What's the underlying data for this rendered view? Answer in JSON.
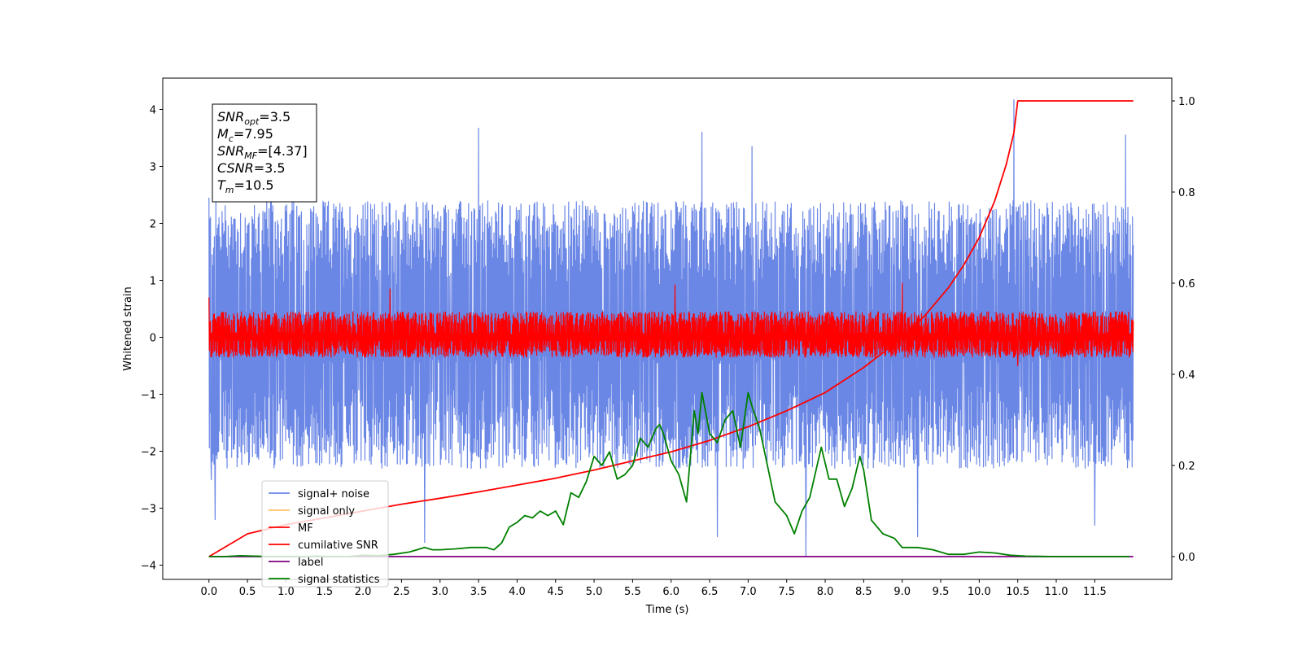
{
  "chart_data": {
    "type": "line",
    "xlabel": "Time (s)",
    "ylabel": "Whitened strain",
    "xlim": [
      -0.6,
      12.5
    ],
    "ylim": [
      -4.25,
      4.55
    ],
    "y2lim": [
      -0.05,
      1.05
    ],
    "x_ticks": [
      0.0,
      0.5,
      1.0,
      1.5,
      2.0,
      2.5,
      3.0,
      3.5,
      4.0,
      4.5,
      5.0,
      5.5,
      6.0,
      6.5,
      7.0,
      7.5,
      8.0,
      8.5,
      9.0,
      9.5,
      10.0,
      10.5,
      11.0,
      11.5
    ],
    "x_tick_labels": [
      "0.0",
      "0.5",
      "1.0",
      "1.5",
      "2.0",
      "2.5",
      "3.0",
      "3.5",
      "4.0",
      "4.5",
      "5.0",
      "5.5",
      "6.0",
      "6.5",
      "7.0",
      "7.5",
      "8.0",
      "8.5",
      "9.0",
      "9.5",
      "10.0",
      "10.5",
      "11.0",
      "11.5"
    ],
    "y_ticks": [
      -4,
      -3,
      -2,
      -1,
      0,
      1,
      2,
      3,
      4
    ],
    "y_tick_labels": [
      "−4",
      "−3",
      "−2",
      "−1",
      "0",
      "1",
      "2",
      "3",
      "4"
    ],
    "y2_ticks": [
      0.0,
      0.2,
      0.4,
      0.6,
      0.8,
      1.0
    ],
    "y2_tick_labels": [
      "0.0",
      "0.2",
      "0.4",
      "0.6",
      "0.8",
      "1.0"
    ],
    "legend_position": "lower-left",
    "grid": false,
    "annotation": {
      "snr_opt": {
        "symbol": "SNR",
        "sub": "opt",
        "value": "=3.5"
      },
      "mc": {
        "symbol": "M",
        "sub": "c",
        "value": "=7.95"
      },
      "snr_mf": {
        "symbol": "SNR",
        "sub": "MF",
        "value": "=[4.37]"
      },
      "csnr": {
        "symbol": "CSNR",
        "sub": "",
        "value": "=3.5"
      },
      "tm": {
        "symbol": "T",
        "sub": "m",
        "value": "=10.5"
      }
    },
    "series": [
      {
        "name": "signal+ noise",
        "color": "#6b87e5",
        "axis": "left",
        "kind": "noise",
        "x_range": [
          0.0,
          12.0
        ],
        "typical_range": [
          -2.3,
          2.4
        ],
        "peaks": [
          [
            0.0,
            2.45
          ],
          [
            0.03,
            -2.5
          ],
          [
            0.08,
            -3.2
          ],
          [
            2.8,
            -3.6
          ],
          [
            3.5,
            3.67
          ],
          [
            6.4,
            3.6
          ],
          [
            6.6,
            -3.5
          ],
          [
            7.05,
            3.35
          ],
          [
            7.75,
            -3.85
          ],
          [
            9.2,
            -3.5
          ],
          [
            10.45,
            4.17
          ],
          [
            11.5,
            -3.3
          ],
          [
            11.9,
            3.55
          ]
        ]
      },
      {
        "name": "signal only",
        "color": "#ffc266",
        "axis": "left",
        "kind": "flat",
        "x_range": [
          0.0,
          12.0
        ],
        "value": 0.0
      },
      {
        "name": "MF",
        "color": "#ff0000",
        "axis": "left",
        "kind": "noise",
        "x_range": [
          0.0,
          12.0
        ],
        "typical_range": [
          -0.35,
          0.45
        ],
        "peaks": [
          [
            0.0,
            0.7
          ],
          [
            2.35,
            0.85
          ],
          [
            6.05,
            0.92
          ],
          [
            9.0,
            0.95
          ],
          [
            10.5,
            -0.5
          ]
        ]
      },
      {
        "name": "cumilative SNR",
        "color": "#ff0000",
        "axis": "right",
        "x": [
          0.0,
          0.5,
          1.0,
          1.5,
          2.0,
          2.5,
          3.0,
          3.5,
          4.0,
          4.5,
          5.0,
          5.5,
          6.0,
          6.5,
          7.0,
          7.5,
          8.0,
          8.5,
          9.0,
          9.3,
          9.6,
          9.8,
          10.0,
          10.2,
          10.35,
          10.45,
          10.5,
          11.5,
          12.0
        ],
        "y": [
          0.0,
          0.05,
          0.07,
          0.085,
          0.1,
          0.115,
          0.128,
          0.142,
          0.157,
          0.172,
          0.19,
          0.21,
          0.23,
          0.255,
          0.285,
          0.32,
          0.36,
          0.415,
          0.48,
          0.53,
          0.59,
          0.64,
          0.7,
          0.78,
          0.86,
          0.93,
          1.0,
          1.0,
          1.0
        ]
      },
      {
        "name": "label",
        "color": "#800080",
        "axis": "right",
        "x": [
          0.0,
          12.0
        ],
        "y": [
          0.0,
          0.0
        ]
      },
      {
        "name": "signal statistics",
        "color": "#008000",
        "axis": "right",
        "x": [
          0.0,
          0.2,
          0.4,
          0.6,
          0.8,
          1.0,
          1.2,
          1.4,
          1.6,
          1.8,
          2.0,
          2.2,
          2.4,
          2.6,
          2.7,
          2.8,
          2.9,
          3.0,
          3.2,
          3.4,
          3.5,
          3.6,
          3.7,
          3.8,
          3.9,
          4.0,
          4.1,
          4.2,
          4.3,
          4.4,
          4.5,
          4.6,
          4.7,
          4.8,
          4.9,
          5.0,
          5.1,
          5.2,
          5.3,
          5.4,
          5.5,
          5.6,
          5.7,
          5.8,
          5.85,
          5.9,
          6.0,
          6.1,
          6.15,
          6.2,
          6.3,
          6.35,
          6.4,
          6.5,
          6.6,
          6.7,
          6.8,
          6.9,
          7.0,
          7.05,
          7.15,
          7.25,
          7.35,
          7.5,
          7.6,
          7.7,
          7.8,
          7.95,
          8.05,
          8.15,
          8.25,
          8.35,
          8.45,
          8.5,
          8.6,
          8.75,
          8.9,
          9.0,
          9.2,
          9.4,
          9.6,
          9.8,
          10.0,
          10.2,
          10.4,
          10.6,
          11.0,
          11.5,
          11.95
        ],
        "y": [
          0.0,
          0.0,
          0.002,
          0.001,
          0.0,
          0.0,
          0.0,
          0.001,
          0.0,
          0.0,
          0.003,
          0.002,
          0.005,
          0.01,
          0.015,
          0.02,
          0.015,
          0.015,
          0.017,
          0.02,
          0.02,
          0.02,
          0.015,
          0.03,
          0.065,
          0.075,
          0.09,
          0.085,
          0.1,
          0.09,
          0.1,
          0.07,
          0.14,
          0.13,
          0.165,
          0.22,
          0.2,
          0.23,
          0.17,
          0.18,
          0.2,
          0.26,
          0.24,
          0.28,
          0.29,
          0.27,
          0.21,
          0.18,
          0.15,
          0.12,
          0.32,
          0.27,
          0.36,
          0.27,
          0.25,
          0.3,
          0.32,
          0.24,
          0.36,
          0.33,
          0.28,
          0.2,
          0.12,
          0.09,
          0.05,
          0.1,
          0.13,
          0.24,
          0.17,
          0.17,
          0.11,
          0.15,
          0.22,
          0.19,
          0.08,
          0.05,
          0.04,
          0.02,
          0.02,
          0.015,
          0.005,
          0.005,
          0.01,
          0.008,
          0.003,
          0.001,
          0.0,
          0.0,
          0.0
        ]
      }
    ]
  }
}
